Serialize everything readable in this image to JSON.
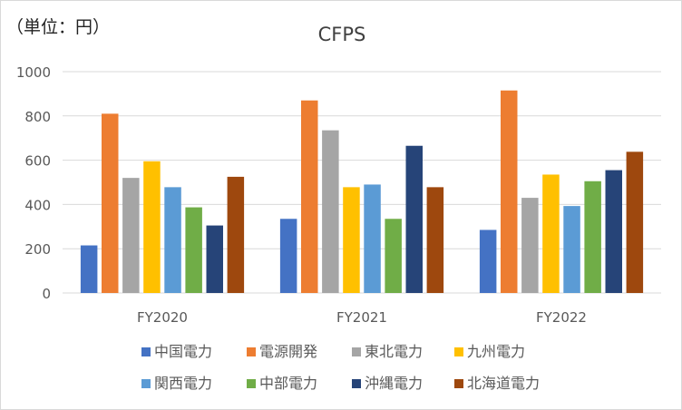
{
  "unit_label": "（単位：円）",
  "chart_data": {
    "type": "bar",
    "title": "CFPS",
    "xlabel": "",
    "ylabel": "",
    "ylim": [
      0,
      1000
    ],
    "yticks": [
      0,
      200,
      400,
      600,
      800,
      1000
    ],
    "grid": true,
    "legend_position": "bottom",
    "categories": [
      "FY2020",
      "FY2021",
      "FY2022"
    ],
    "series": [
      {
        "name": "中国電力",
        "color": "#4472c4",
        "values": [
          215,
          335,
          285
        ]
      },
      {
        "name": "電源開発",
        "color": "#ed7d31",
        "values": [
          810,
          870,
          915
        ]
      },
      {
        "name": "東北電力",
        "color": "#a5a5a5",
        "values": [
          520,
          735,
          430
        ]
      },
      {
        "name": "九州電力",
        "color": "#ffc000",
        "values": [
          595,
          478,
          535
        ]
      },
      {
        "name": "関西電力",
        "color": "#5b9bd5",
        "values": [
          478,
          490,
          393
        ]
      },
      {
        "name": "中部電力",
        "color": "#70ad47",
        "values": [
          387,
          335,
          505
        ]
      },
      {
        "name": "沖縄電力",
        "color": "#264478",
        "values": [
          305,
          665,
          555
        ]
      },
      {
        "name": "北海道電力",
        "color": "#9e480e",
        "values": [
          525,
          478,
          638
        ]
      }
    ]
  }
}
